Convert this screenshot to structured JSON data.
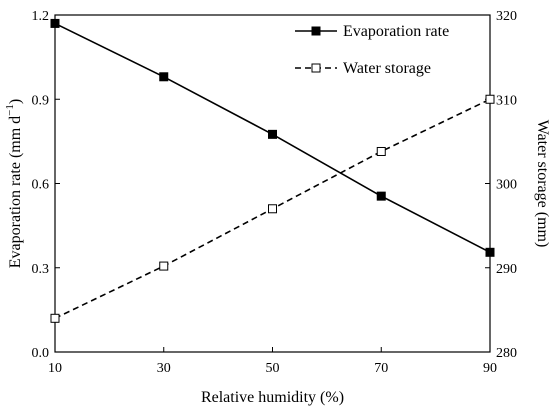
{
  "chart_data": {
    "type": "line",
    "title": "",
    "xlabel": "Relative humidity (%)",
    "ylabel_left_main": "Evaporation rate (mm d",
    "ylabel_left_sup": "−1",
    "ylabel_left_end": ")",
    "ylabel_right": "Water storage (mm)",
    "x": [
      10,
      30,
      50,
      70,
      90
    ],
    "x_ticks": [
      "10",
      "30",
      "50",
      "70",
      "90"
    ],
    "xlim": [
      10,
      90
    ],
    "y_left_lim": [
      0,
      1.2
    ],
    "y_left_ticks": [
      "0.0",
      "0.3",
      "0.6",
      "0.9",
      "1.2"
    ],
    "y_right_lim": [
      280,
      320
    ],
    "y_right_ticks": [
      "280",
      "290",
      "300",
      "310",
      "320"
    ],
    "legend_position": "top-right",
    "grid": false,
    "series": [
      {
        "name": "Evaporation rate",
        "axis": "left",
        "values": [
          1.17,
          0.98,
          0.775,
          0.555,
          0.355
        ],
        "line_style": "solid",
        "marker": "filled-square",
        "color": "#000000"
      },
      {
        "name": "Water storage",
        "axis": "right",
        "values": [
          284,
          290.2,
          297,
          303.8,
          310
        ],
        "line_style": "dashed",
        "marker": "open-square",
        "color": "#000000"
      }
    ]
  }
}
